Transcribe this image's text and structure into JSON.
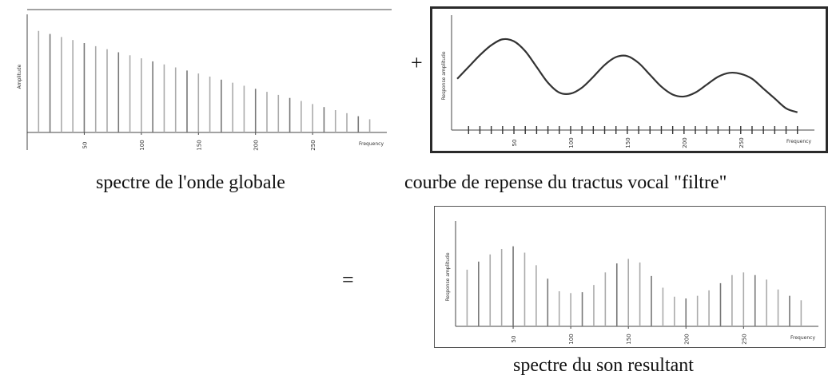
{
  "operators": {
    "plus": "+",
    "equals": "="
  },
  "panels": [
    {
      "caption": "spectre de l'onde globale",
      "y_axis_label": "Amplitude",
      "x_axis_label": "Frequency"
    },
    {
      "caption": "courbe de repense du tractus vocal \"filtre\"",
      "y_axis_label": "Response amplitude",
      "x_axis_label": "Frequency"
    },
    {
      "caption": "spectre du son resultant",
      "y_axis_label": "Response amplitude",
      "x_axis_label": "Frequency"
    }
  ],
  "chart_data": [
    {
      "type": "bar",
      "ylabel": "Amplitude",
      "xlabel": "Frequency",
      "x_tick_labels": [
        "50",
        "100",
        "150",
        "200",
        "250"
      ],
      "x": [
        10,
        20,
        30,
        40,
        50,
        60,
        70,
        80,
        90,
        100,
        110,
        120,
        130,
        140,
        150,
        160,
        170,
        180,
        190,
        200,
        210,
        220,
        230,
        240,
        250,
        260,
        270,
        280,
        290,
        300
      ],
      "values": [
        1.0,
        0.97,
        0.94,
        0.91,
        0.88,
        0.85,
        0.82,
        0.79,
        0.76,
        0.73,
        0.7,
        0.67,
        0.64,
        0.61,
        0.58,
        0.55,
        0.52,
        0.49,
        0.46,
        0.43,
        0.4,
        0.37,
        0.34,
        0.31,
        0.28,
        0.25,
        0.22,
        0.19,
        0.16,
        0.13
      ],
      "xlim": [
        0,
        315
      ],
      "ylim": [
        0,
        1.1
      ]
    },
    {
      "type": "line",
      "ylabel": "Response amplitude",
      "xlabel": "Frequency",
      "x_tick_labels": [
        "50",
        "100",
        "150",
        "200",
        "250"
      ],
      "x": [
        0,
        10,
        20,
        30,
        40,
        50,
        60,
        70,
        80,
        90,
        100,
        110,
        120,
        130,
        140,
        150,
        160,
        170,
        180,
        190,
        200,
        210,
        220,
        230,
        240,
        250,
        260,
        270,
        280,
        290,
        300
      ],
      "values": [
        0.52,
        0.64,
        0.76,
        0.86,
        0.92,
        0.9,
        0.8,
        0.64,
        0.48,
        0.38,
        0.37,
        0.43,
        0.54,
        0.66,
        0.74,
        0.75,
        0.68,
        0.56,
        0.44,
        0.36,
        0.34,
        0.38,
        0.46,
        0.54,
        0.58,
        0.57,
        0.52,
        0.42,
        0.32,
        0.22,
        0.18
      ],
      "xlim": [
        -5,
        315
      ],
      "ylim": [
        0,
        1.1
      ]
    },
    {
      "type": "bar",
      "ylabel": "Response amplitude",
      "xlabel": "Frequency",
      "x_tick_labels": [
        "50",
        "100",
        "150",
        "200",
        "250"
      ],
      "x": [
        10,
        20,
        30,
        40,
        50,
        60,
        70,
        80,
        90,
        100,
        110,
        120,
        130,
        140,
        150,
        160,
        170,
        180,
        190,
        200,
        210,
        220,
        230,
        240,
        250,
        260,
        270,
        280,
        290,
        300
      ],
      "values": [
        0.63,
        0.72,
        0.8,
        0.86,
        0.89,
        0.82,
        0.68,
        0.53,
        0.39,
        0.37,
        0.38,
        0.46,
        0.6,
        0.7,
        0.75,
        0.71,
        0.56,
        0.43,
        0.33,
        0.31,
        0.34,
        0.4,
        0.48,
        0.57,
        0.6,
        0.57,
        0.52,
        0.41,
        0.34,
        0.29
      ],
      "xlim": [
        0,
        315
      ],
      "ylim": [
        0,
        1.1
      ]
    }
  ]
}
